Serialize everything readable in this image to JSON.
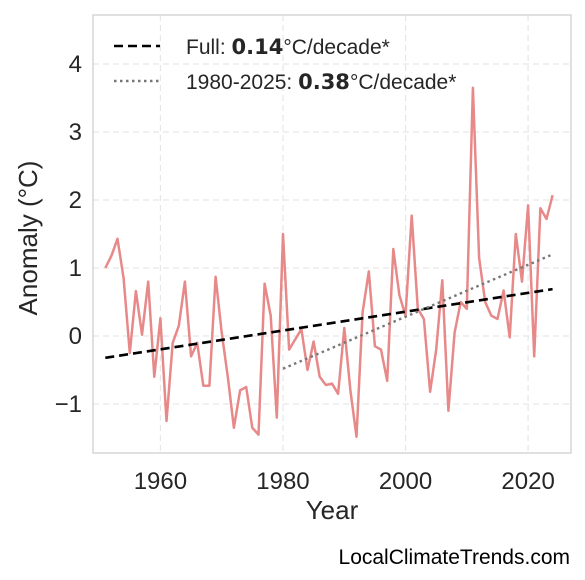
{
  "chart_data": {
    "type": "line",
    "xlabel": "Year",
    "ylabel": "Anomaly (°C)",
    "xlim": [
      1949,
      2027
    ],
    "ylim": [
      -1.72,
      4.72
    ],
    "xticks": [
      1960,
      1980,
      2000,
      2020
    ],
    "xtick_labels": [
      "1960",
      "1980",
      "2000",
      "2020"
    ],
    "yticks": [
      -1,
      0,
      1,
      2,
      3,
      4
    ],
    "ytick_labels": [
      "−1",
      "0",
      "1",
      "2",
      "3",
      "4"
    ],
    "grid": true,
    "legend_position": "top-left",
    "series": [
      {
        "color": "#e88989",
        "x": [
          1951,
          1952,
          1953,
          1954,
          1955,
          1956,
          1957,
          1958,
          1959,
          1960,
          1961,
          1962,
          1963,
          1964,
          1965,
          1966,
          1967,
          1968,
          1969,
          1970,
          1971,
          1972,
          1973,
          1974,
          1975,
          1976,
          1977,
          1978,
          1979,
          1980,
          1981,
          1982,
          1983,
          1984,
          1985,
          1986,
          1987,
          1988,
          1989,
          1990,
          1991,
          1992,
          1993,
          1994,
          1995,
          1996,
          1997,
          1998,
          1999,
          2000,
          2001,
          2002,
          2003,
          2004,
          2005,
          2006,
          2007,
          2008,
          2009,
          2010,
          2011,
          2012,
          2013,
          2014,
          2015,
          2016,
          2017,
          2018,
          2019,
          2020,
          2021,
          2022,
          2023,
          2024
        ],
        "y": [
          1.0,
          1.18,
          1.43,
          0.85,
          -0.25,
          0.66,
          0.02,
          0.8,
          -0.6,
          0.26,
          -1.25,
          -0.1,
          0.15,
          0.8,
          -0.3,
          -0.1,
          -0.73,
          -0.73,
          0.87,
          0.05,
          -0.6,
          -1.35,
          -0.8,
          -0.75,
          -1.35,
          -1.45,
          0.77,
          0.3,
          -1.2,
          1.5,
          -0.2,
          -0.05,
          0.1,
          -0.5,
          -0.08,
          -0.6,
          -0.72,
          -0.7,
          -0.85,
          0.12,
          -0.8,
          -1.48,
          0.35,
          0.95,
          -0.15,
          -0.2,
          -0.66,
          1.28,
          0.6,
          0.3,
          1.77,
          0.4,
          0.25,
          -0.82,
          -0.2,
          0.82,
          -1.1,
          0.05,
          0.5,
          0.4,
          3.65,
          1.15,
          0.5,
          0.3,
          0.25,
          0.67,
          -0.02,
          1.5,
          0.8,
          1.92,
          -0.3,
          1.88,
          1.72,
          2.07
        ]
      },
      {
        "name": "Full: 0.14°C/decade*",
        "label_prefix": "Full: ",
        "label_value": "0.14",
        "label_suffix": "°C/decade*",
        "color": "#000000",
        "style": "dashed",
        "x": [
          1951,
          2024
        ],
        "y": [
          -0.32,
          0.69
        ]
      },
      {
        "name": "1980-2025: 0.38°C/decade*",
        "label_prefix": "1980-2025: ",
        "label_value": "0.38",
        "label_suffix": "°C/decade*",
        "color": "#777777",
        "style": "dotted",
        "x": [
          1980,
          2024
        ],
        "y": [
          -0.48,
          1.2
        ]
      }
    ]
  },
  "footer": {
    "text": "LocalClimateTrends.com"
  }
}
